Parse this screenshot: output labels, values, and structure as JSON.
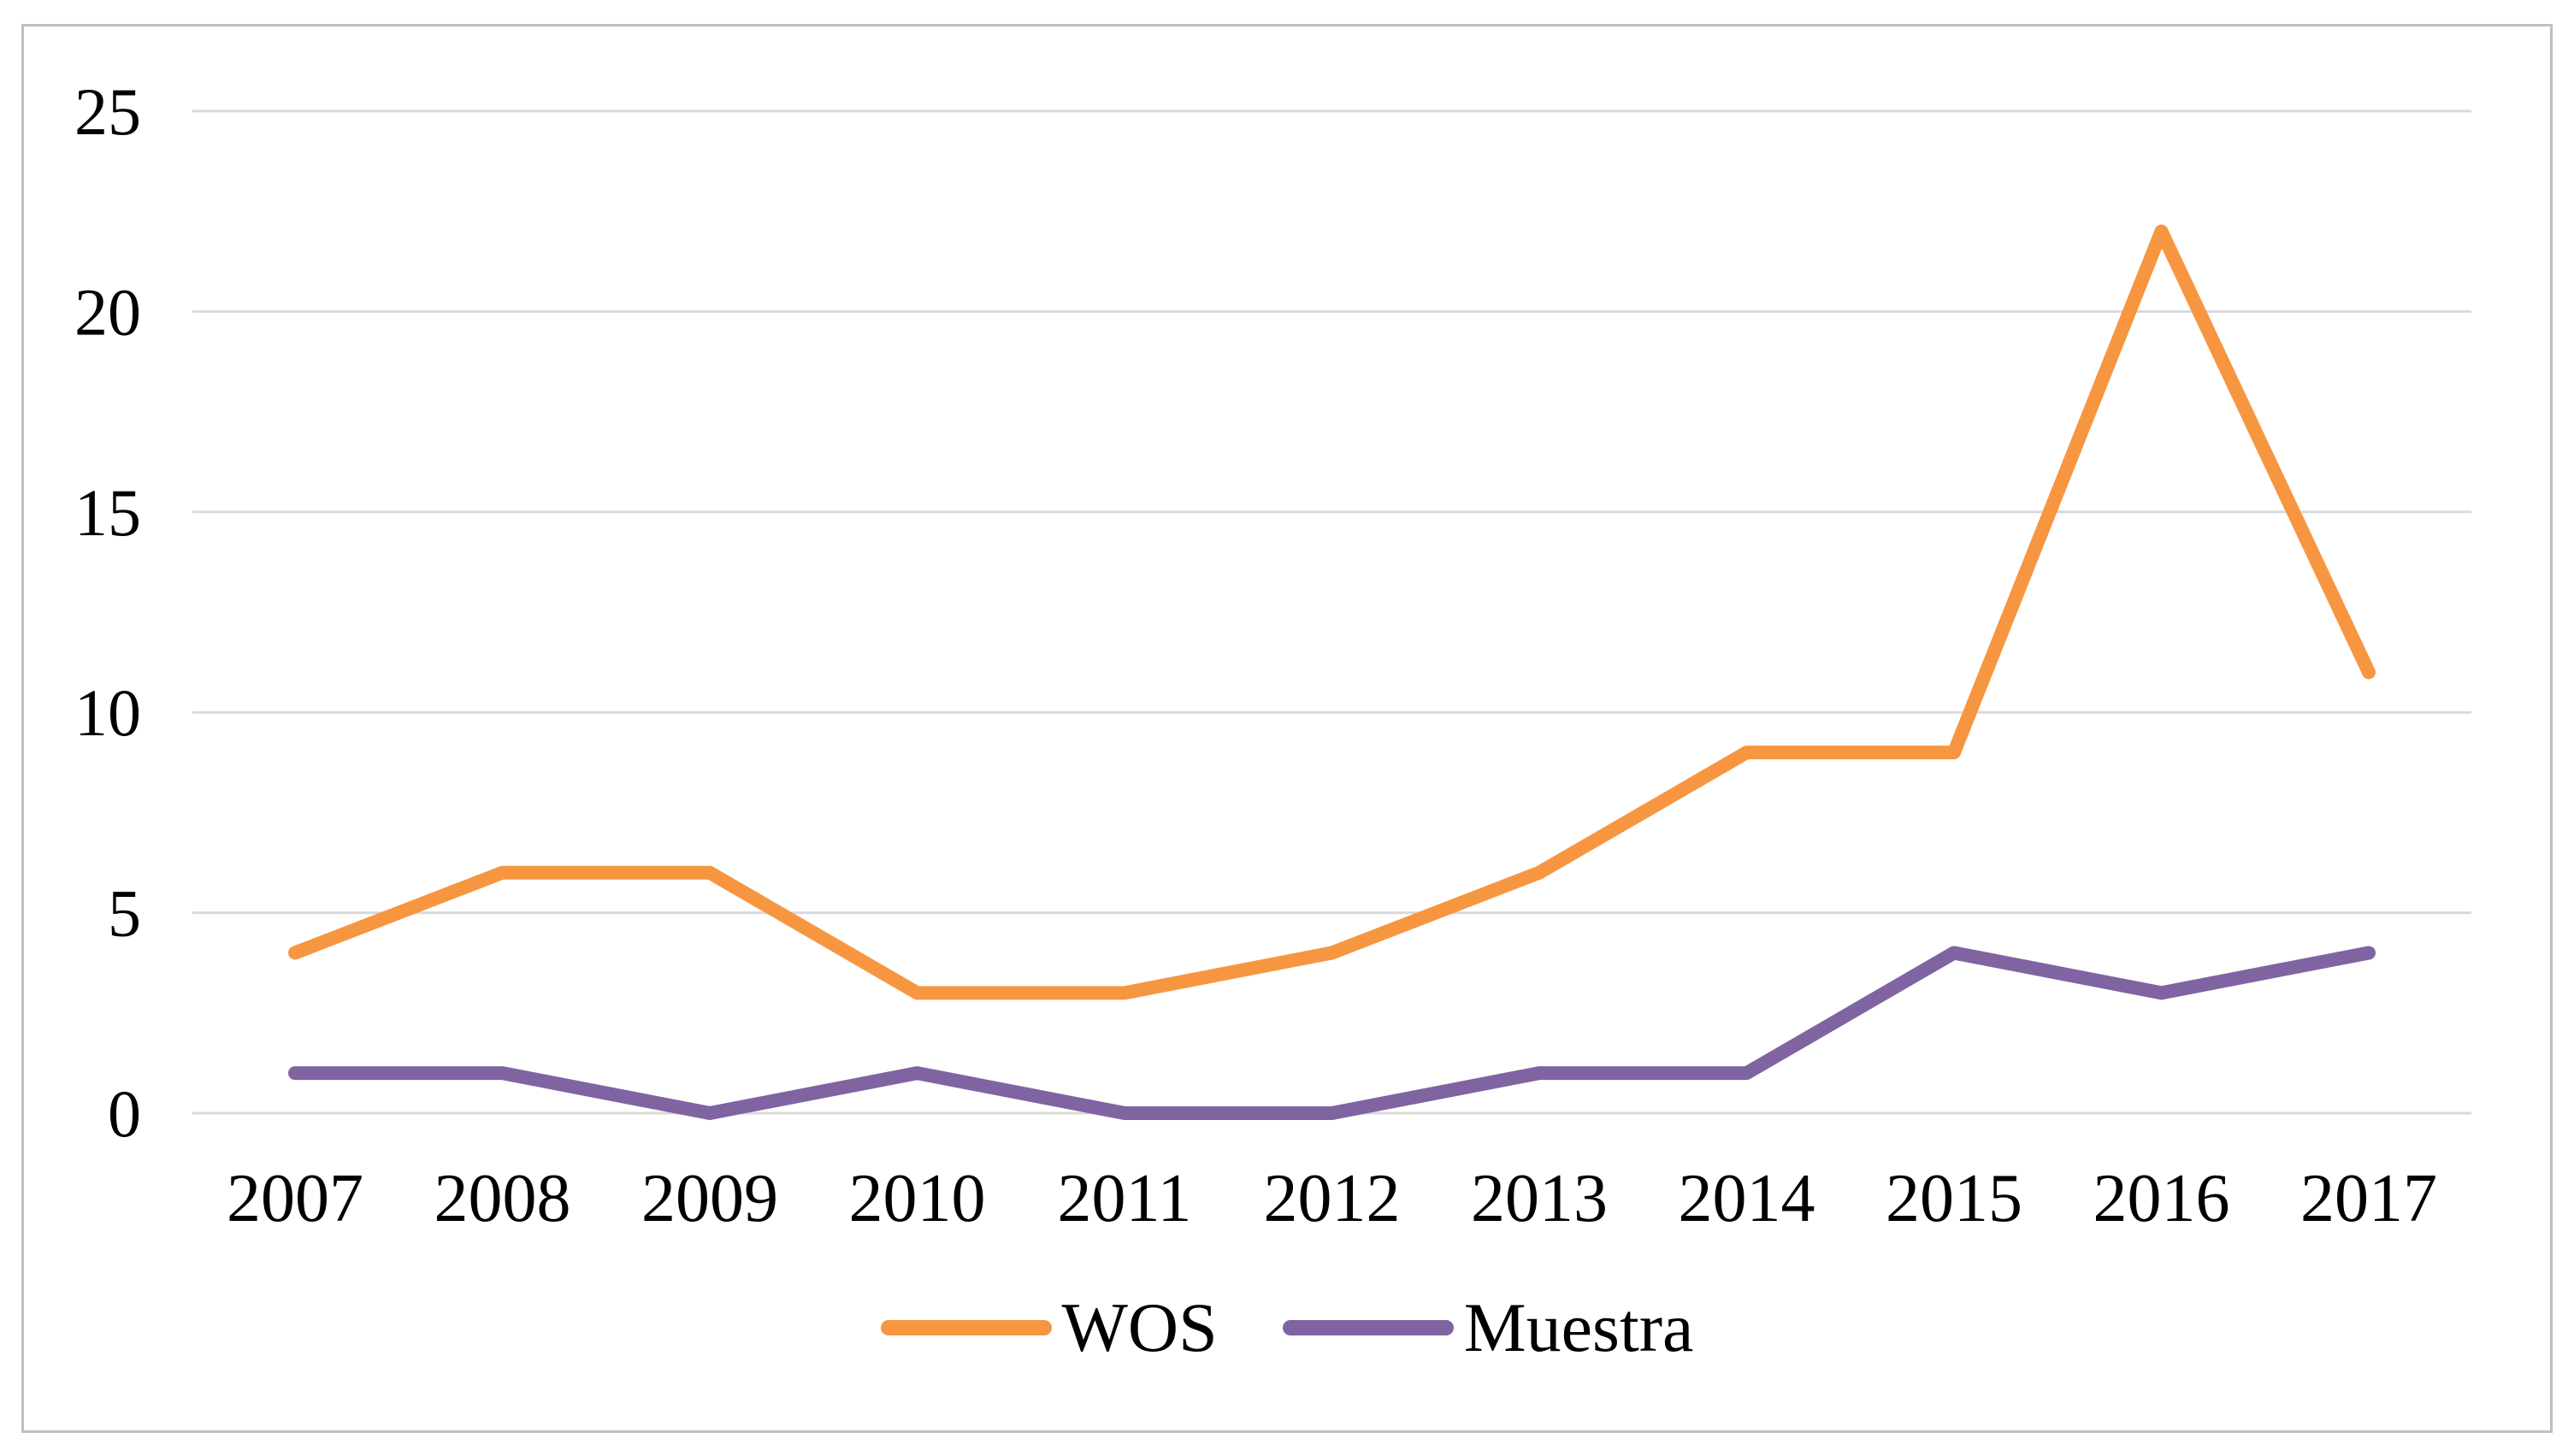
{
  "figure": {
    "background_color": "#ffffff",
    "border_color": "#bfbfbf"
  },
  "chart_data": {
    "type": "line",
    "title": "",
    "xlabel": "",
    "ylabel": "",
    "x": [
      2007,
      2008,
      2009,
      2010,
      2011,
      2012,
      2013,
      2014,
      2015,
      2016,
      2017
    ],
    "series": [
      {
        "name": "WOS",
        "color": "#f79641",
        "values": [
          4,
          6,
          6,
          3,
          3,
          4,
          6,
          9,
          9,
          22,
          11
        ]
      },
      {
        "name": "Muestra",
        "color": "#8064a2",
        "values": [
          1,
          1,
          0,
          1,
          0,
          0,
          1,
          1,
          4,
          3,
          4
        ]
      }
    ],
    "ylim": [
      0,
      25
    ],
    "yticks": [
      0,
      5,
      10,
      15,
      20,
      25
    ],
    "grid": "horizontal",
    "gridline_color": "#d9d9d9",
    "text_color": "#000000",
    "legend_position": "bottom"
  }
}
